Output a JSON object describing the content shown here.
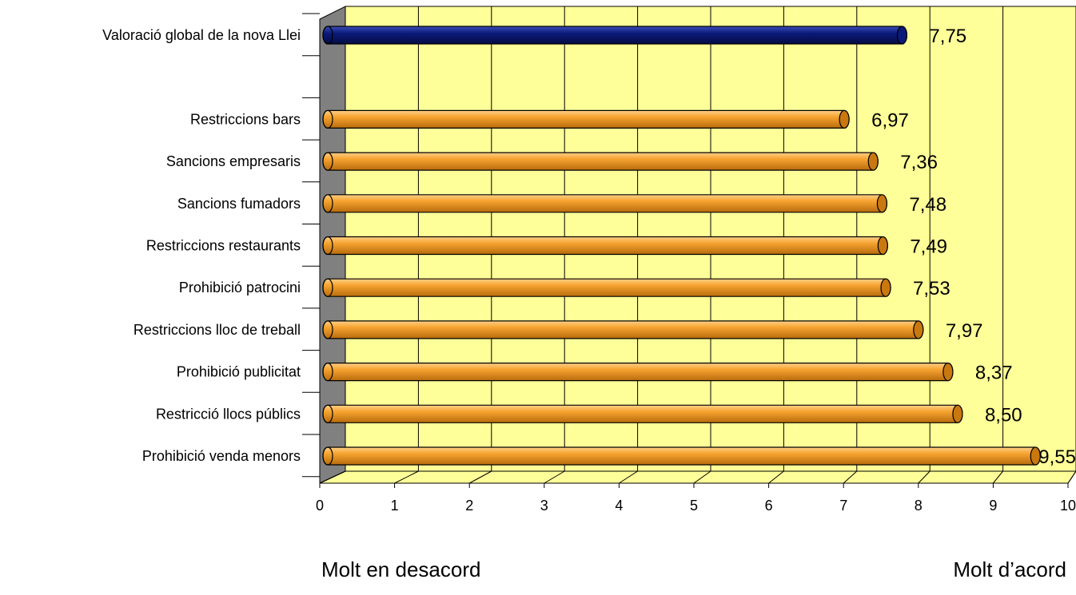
{
  "chart_data": {
    "type": "bar",
    "orientation": "horizontal",
    "style": "3d-cylinder",
    "categories": [
      "Valoració global de la nova Llei",
      "",
      "Restriccions bars",
      "Sancions empresaris",
      "Sancions fumadors",
      "Restriccions restaurants",
      "Prohibició patrocini",
      "Restriccions lloc de treball",
      "Prohibició publicitat",
      "Restricció llocs públics",
      "Prohibició venda menors"
    ],
    "values": [
      7.75,
      null,
      6.97,
      7.36,
      7.48,
      7.49,
      7.53,
      7.97,
      8.37,
      8.5,
      9.55
    ],
    "value_labels": [
      "7,75",
      "",
      "6,97",
      "7,36",
      "7,48",
      "7,49",
      "7,53",
      "7,97",
      "8,37",
      "8,50",
      "9,55"
    ],
    "bar_colors": [
      "#0a1a78",
      null,
      "#f39a1a",
      "#f39a1a",
      "#f39a1a",
      "#f39a1a",
      "#f39a1a",
      "#f39a1a",
      "#f39a1a",
      "#f39a1a",
      "#f39a1a"
    ],
    "xlim": [
      0,
      10
    ],
    "xticks": [
      "0",
      "1",
      "2",
      "3",
      "4",
      "5",
      "6",
      "7",
      "8",
      "9",
      "10"
    ],
    "grid": true,
    "legend": "none",
    "extreme_left_label": "Molt en desacord",
    "extreme_right_label": "Molt d’acord",
    "colors": {
      "plot_background": "#ffff99",
      "wall": "#808080",
      "highlight_bar": "#0a1a78",
      "bar": "#f39a1a"
    }
  }
}
